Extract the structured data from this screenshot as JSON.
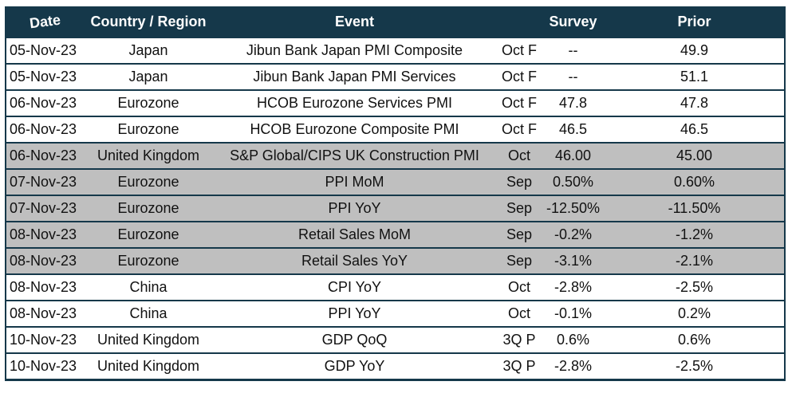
{
  "colors": {
    "header_bg": "#15384a",
    "border": "#15384a",
    "shaded_row": "#bfbfbf",
    "row_bg": "#ffffff",
    "text": "#111111",
    "header_text": "#ffffff"
  },
  "table": {
    "columns": [
      {
        "key": "date",
        "label": "Date"
      },
      {
        "key": "country",
        "label": "Country / Region"
      },
      {
        "key": "event",
        "label": "Event"
      },
      {
        "key": "period",
        "label": ""
      },
      {
        "key": "survey",
        "label": "Survey"
      },
      {
        "key": "prior",
        "label": "Prior"
      }
    ],
    "rows": [
      {
        "date": "05-Nov-23",
        "country": "Japan",
        "event": "Jibun Bank Japan PMI Composite",
        "period": "Oct F",
        "survey": "--",
        "prior": "49.9",
        "shaded": false
      },
      {
        "date": "05-Nov-23",
        "country": "Japan",
        "event": "Jibun Bank Japan PMI Services",
        "period": "Oct F",
        "survey": "--",
        "prior": "51.1",
        "shaded": false
      },
      {
        "date": "06-Nov-23",
        "country": "Eurozone",
        "event": "HCOB Eurozone Services PMI",
        "period": "Oct F",
        "survey": "47.8",
        "prior": "47.8",
        "shaded": false
      },
      {
        "date": "06-Nov-23",
        "country": "Eurozone",
        "event": "HCOB Eurozone Composite PMI",
        "period": "Oct F",
        "survey": "46.5",
        "prior": "46.5",
        "shaded": false
      },
      {
        "date": "06-Nov-23",
        "country": "United Kingdom",
        "event": "S&P Global/CIPS UK Construction PMI",
        "period": "Oct",
        "survey": "46.00",
        "prior": "45.00",
        "shaded": true
      },
      {
        "date": "07-Nov-23",
        "country": "Eurozone",
        "event": "PPI MoM",
        "period": "Sep",
        "survey": "0.50%",
        "prior": "0.60%",
        "shaded": true
      },
      {
        "date": "07-Nov-23",
        "country": "Eurozone",
        "event": "PPI YoY",
        "period": "Sep",
        "survey": "-12.50%",
        "prior": "-11.50%",
        "shaded": true
      },
      {
        "date": "08-Nov-23",
        "country": "Eurozone",
        "event": "Retail Sales MoM",
        "period": "Sep",
        "survey": "-0.2%",
        "prior": "-1.2%",
        "shaded": true
      },
      {
        "date": "08-Nov-23",
        "country": "Eurozone",
        "event": "Retail Sales YoY",
        "period": "Sep",
        "survey": "-3.1%",
        "prior": "-2.1%",
        "shaded": true
      },
      {
        "date": "08-Nov-23",
        "country": "China",
        "event": "CPI YoY",
        "period": "Oct",
        "survey": "-2.8%",
        "prior": "-2.5%",
        "shaded": false
      },
      {
        "date": "08-Nov-23",
        "country": "China",
        "event": "PPI YoY",
        "period": "Oct",
        "survey": "-0.1%",
        "prior": "0.2%",
        "shaded": false
      },
      {
        "date": "10-Nov-23",
        "country": "United Kingdom",
        "event": "GDP QoQ",
        "period": "3Q P",
        "survey": "0.6%",
        "prior": "0.6%",
        "shaded": false
      },
      {
        "date": "10-Nov-23",
        "country": "United Kingdom",
        "event": "GDP YoY",
        "period": "3Q P",
        "survey": "-2.8%",
        "prior": "-2.5%",
        "shaded": false
      }
    ]
  }
}
